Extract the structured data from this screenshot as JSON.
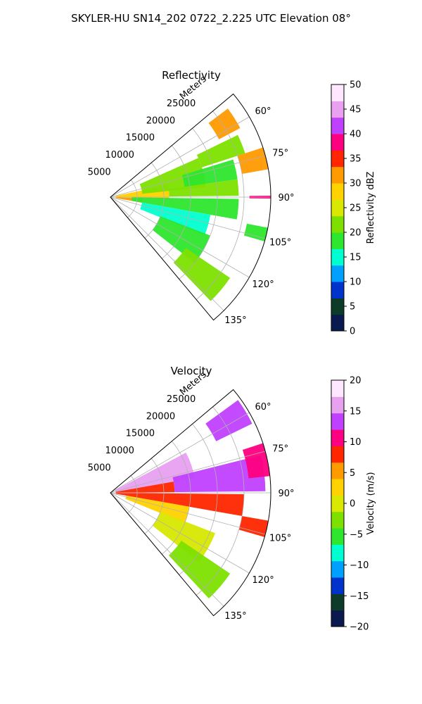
{
  "figure": {
    "suptitle": "SKYLER-HU  SN14_202  0722_2.225 UTC Elevation 08°"
  },
  "chart_data": [
    {
      "type": "heatmap",
      "projection": "polar-sector",
      "title": "Reflectivity",
      "radial_label": "Meters",
      "radial_ticks": [
        "5000",
        "10000",
        "15000",
        "20000",
        "25000"
      ],
      "radial_tick_values": [
        5000,
        10000,
        15000,
        20000,
        25000
      ],
      "radial_max": 30000,
      "angle_range": [
        50,
        140
      ],
      "angle_ticks": [
        "60°",
        "75°",
        "90°",
        "105°",
        "120°",
        "135°"
      ],
      "angle_tick_values": [
        60,
        75,
        90,
        105,
        120,
        135
      ],
      "grid": true,
      "colorbar": {
        "label": "Reflectivity dBZ",
        "range": [
          0,
          50
        ],
        "ticks": [
          "0",
          "5",
          "10",
          "15",
          "20",
          "25",
          "30",
          "35",
          "40",
          "45",
          "50"
        ],
        "tick_values": [
          0,
          5,
          10,
          15,
          20,
          25,
          30,
          35,
          40,
          45,
          50
        ],
        "colors": [
          "#0a1a4e",
          "#0d3b2a",
          "#0033cc",
          "#00a0ff",
          "#00ffd0",
          "#2ee62e",
          "#7de000",
          "#d8e800",
          "#ffd200",
          "#ff9a00",
          "#ff2600",
          "#ff0080",
          "#c040ff",
          "#e8a0f0",
          "#ffe8ff"
        ]
      },
      "regions": [
        {
          "r": [
            1000,
            11000
          ],
          "a": [
            78,
            92
          ],
          "v": 27
        },
        {
          "r": [
            1000,
            6000
          ],
          "a": [
            92,
            100
          ],
          "v": 32
        },
        {
          "r": [
            6000,
            18000
          ],
          "a": [
            66,
            84
          ],
          "v": 21
        },
        {
          "r": [
            11000,
            24000
          ],
          "a": [
            82,
            89.4
          ],
          "v": 22
        },
        {
          "r": [
            14000,
            24000
          ],
          "a": [
            73,
            82
          ],
          "v": 18
        },
        {
          "r": [
            18000,
            26500
          ],
          "a": [
            64,
            72
          ],
          "v": 20
        },
        {
          "r": [
            23000,
            27500
          ],
          "a": [
            53,
            62
          ],
          "v": 30
        },
        {
          "r": [
            25000,
            30000
          ],
          "a": [
            72,
            80
          ],
          "v": 31
        },
        {
          "r": [
            4000,
            24000
          ],
          "a": [
            90.8,
            100
          ],
          "v": 18
        },
        {
          "r": [
            6000,
            19000
          ],
          "a": [
            100,
            112
          ],
          "v": 14
        },
        {
          "r": [
            10000,
            20000
          ],
          "a": [
            111,
            128
          ],
          "v": 19
        },
        {
          "r": [
            17000,
            27000
          ],
          "a": [
            124,
            136
          ],
          "v": 21
        },
        {
          "r": [
            26000,
            30000
          ],
          "a": [
            101,
            106
          ],
          "v": 19
        },
        {
          "r": [
            26000,
            30000
          ],
          "a": [
            89.5,
            90.5
          ],
          "v": 38
        }
      ]
    },
    {
      "type": "heatmap",
      "projection": "polar-sector",
      "title": "Velocity",
      "radial_label": "Meters",
      "radial_ticks": [
        "5000",
        "10000",
        "15000",
        "20000",
        "25000"
      ],
      "radial_tick_values": [
        5000,
        10000,
        15000,
        20000,
        25000
      ],
      "radial_max": 30000,
      "angle_range": [
        50,
        140
      ],
      "angle_ticks": [
        "60°",
        "75°",
        "90°",
        "105°",
        "120°",
        "135°"
      ],
      "angle_tick_values": [
        60,
        75,
        90,
        105,
        120,
        135
      ],
      "grid": true,
      "colorbar": {
        "label": "Velocity (m/s)",
        "range": [
          -20,
          20
        ],
        "ticks": [
          "−20",
          "−15",
          "−10",
          "−5",
          "0",
          "5",
          "10",
          "15",
          "20"
        ],
        "tick_values": [
          -20,
          -15,
          -10,
          -5,
          0,
          5,
          10,
          15,
          20
        ],
        "colors": [
          "#0a1a4e",
          "#0d3b2a",
          "#0033cc",
          "#00a0ff",
          "#00ffd0",
          "#2ee62e",
          "#7de000",
          "#d8e800",
          "#ffd200",
          "#ff9a00",
          "#ff2600",
          "#ff0080",
          "#c040ff",
          "#e8a0f0",
          "#ffe8ff"
        ]
      },
      "regions": [
        {
          "r": [
            1000,
            16000
          ],
          "a": [
            62,
            80
          ],
          "v": 15
        },
        {
          "r": [
            12000,
            29000
          ],
          "a": [
            76,
            89.4
          ],
          "v": 14
        },
        {
          "r": [
            1000,
            12000
          ],
          "a": [
            80,
            89.4
          ],
          "v": 9
        },
        {
          "r": [
            22000,
            29500
          ],
          "a": [
            54,
            64
          ],
          "v": 13
        },
        {
          "r": [
            26000,
            30000
          ],
          "a": [
            72,
            84
          ],
          "v": 10
        },
        {
          "r": [
            1000,
            25000
          ],
          "a": [
            90.6,
            100
          ],
          "v": 8
        },
        {
          "r": [
            3000,
            15000
          ],
          "a": [
            100,
            112
          ],
          "v": 3
        },
        {
          "r": [
            10000,
            21000
          ],
          "a": [
            111,
            128
          ],
          "v": 1
        },
        {
          "r": [
            16000,
            27000
          ],
          "a": [
            124,
            137
          ],
          "v": -4
        },
        {
          "r": [
            25000,
            30000
          ],
          "a": [
            100,
            106
          ],
          "v": 9
        }
      ]
    }
  ]
}
